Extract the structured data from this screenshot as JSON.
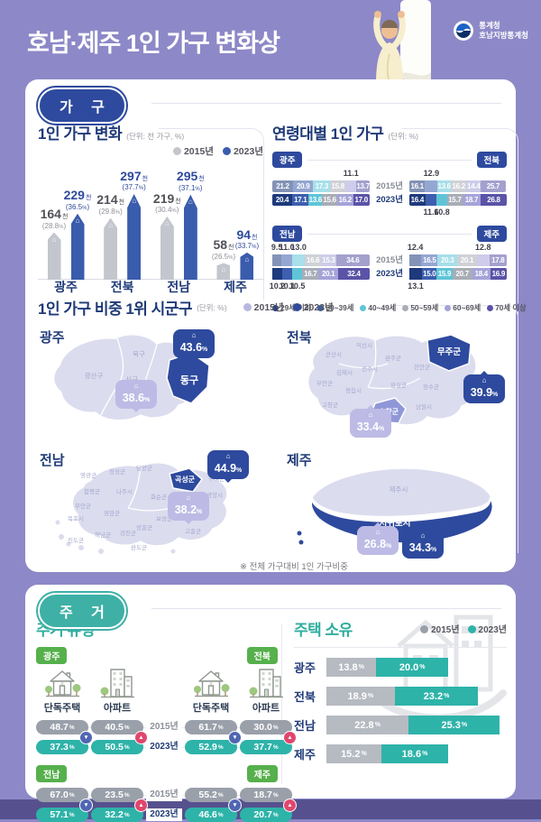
{
  "header": {
    "title": "호남·제주 1인 가구 변화상",
    "logo_top": "통계청",
    "logo_bottom": "호남지방통계청"
  },
  "sections": {
    "household": "가 구",
    "housing": "주 거"
  },
  "units": {
    "percent": "%"
  },
  "chart_data": [
    {
      "type": "bar",
      "title": "1인 가구 변화",
      "unit_label": "(단위: 천 가구, %)",
      "value_suffix": "천",
      "legend": [
        "2015년",
        "2023년"
      ],
      "legend_colors": [
        "#c3c6cd",
        "#3a5cad"
      ],
      "categories": [
        "광주",
        "전북",
        "전남",
        "제주"
      ],
      "series": [
        {
          "name": "2015년",
          "values": [
            "164",
            "214",
            "219",
            "58"
          ],
          "pct": [
            "28.8",
            "29.8",
            "30.4",
            "26.5"
          ]
        },
        {
          "name": "2023년",
          "values": [
            "229",
            "297",
            "295",
            "94"
          ],
          "pct": [
            "36.5",
            "37.7",
            "37.1",
            "33.7"
          ]
        }
      ],
      "ylim": [
        0,
        320
      ]
    },
    {
      "type": "stacked-bar-horizontal",
      "title": "연령대별 1인 가구",
      "unit_label": "(단위: %)",
      "legend": [
        "29세 이하",
        "30~39세",
        "40~49세",
        "50~59세",
        "60~69세",
        "70세 이상"
      ],
      "legend_colors": [
        "#1e3a7c",
        "#3d5fae",
        "#5ec5d8",
        "#a8adb6",
        "#a5a3d8",
        "#5a53a7"
      ],
      "row_labels": [
        "2015년",
        "2023년"
      ],
      "regions": [
        {
          "name": "광주",
          "y2015": [
            {
              "v": "21.2",
              "pos": "in"
            },
            {
              "v": "20.9",
              "pos": "in"
            },
            {
              "v": "17.3",
              "pos": "in"
            },
            {
              "v": "15.8",
              "pos": "in"
            },
            {
              "v": "11.1",
              "pos": "out"
            },
            {
              "v": "13.7",
              "pos": "in"
            }
          ],
          "y2023": [
            {
              "v": "20.4",
              "pos": "in"
            },
            {
              "v": "17.1",
              "pos": "in"
            },
            {
              "v": "13.6",
              "pos": "in"
            },
            {
              "v": "15.6",
              "pos": "in"
            },
            {
              "v": "16.2",
              "pos": "in"
            },
            {
              "v": "17.0",
              "pos": "in"
            }
          ]
        },
        {
          "name": "전북",
          "y2015": [
            {
              "v": "16.1",
              "pos": "in"
            },
            {
              "v": "12.9",
              "pos": "out"
            },
            {
              "v": "13.6",
              "pos": "in"
            },
            {
              "v": "16.2",
              "pos": "in"
            },
            {
              "v": "14.4",
              "pos": "in"
            },
            {
              "v": "25.7",
              "pos": "in"
            }
          ],
          "y2023": [
            {
              "v": "16.4",
              "pos": "in"
            },
            {
              "v": "11.6",
              "pos": "out"
            },
            {
              "v": "10.8",
              "pos": "out"
            },
            {
              "v": "15.7",
              "pos": "in"
            },
            {
              "v": "18.7",
              "pos": "in"
            },
            {
              "v": "26.8",
              "pos": "in"
            }
          ]
        },
        {
          "name": "전남",
          "y2015": [
            {
              "v": "9.5",
              "pos": "out"
            },
            {
              "v": "11.0",
              "pos": "out"
            },
            {
              "v": "13.0",
              "pos": "out"
            },
            {
              "v": "16.6",
              "pos": "in"
            },
            {
              "v": "15.3",
              "pos": "in"
            },
            {
              "v": "34.6",
              "pos": "in"
            }
          ],
          "y2023": [
            {
              "v": "10.2",
              "pos": "out"
            },
            {
              "v": "10.1",
              "pos": "out"
            },
            {
              "v": "10.5",
              "pos": "out"
            },
            {
              "v": "16.7",
              "pos": "in"
            },
            {
              "v": "20.1",
              "pos": "in"
            },
            {
              "v": "32.4",
              "pos": "in"
            }
          ]
        },
        {
          "name": "제주",
          "y2015": [
            {
              "v": "12.4",
              "pos": "out"
            },
            {
              "v": "16.5",
              "pos": "in"
            },
            {
              "v": "20.3",
              "pos": "in"
            },
            {
              "v": "20.1",
              "pos": "in"
            },
            {
              "v": "12.8",
              "pos": "out"
            },
            {
              "v": "17.8",
              "pos": "in"
            }
          ],
          "y2023": [
            {
              "v": "13.1",
              "pos": "out"
            },
            {
              "v": "15.0",
              "pos": "in"
            },
            {
              "v": "15.9",
              "pos": "in"
            },
            {
              "v": "20.7",
              "pos": "in"
            },
            {
              "v": "18.4",
              "pos": "in"
            },
            {
              "v": "16.9",
              "pos": "in"
            }
          ]
        }
      ]
    },
    {
      "type": "map-callouts",
      "title": "1인 가구 비중 1위 시군구",
      "unit_label": "(단위: %)",
      "legend": [
        "2015년",
        "2023년"
      ],
      "legend_colors": [
        "#b9b7e2",
        "#2e4a9e"
      ],
      "note": "※ 전체 가구대비 1인 가구비중",
      "regions": [
        {
          "name": "광주",
          "top_district": "동구",
          "v2023": "43.6",
          "v2015": "38.6",
          "districts": [
            "광산구",
            "북구",
            "서구",
            "남구"
          ]
        },
        {
          "name": "전북",
          "top_district": "무주군",
          "v2023": "39.9",
          "v2015": "33.4",
          "district_2015": "순창군",
          "districts": [
            "군산시",
            "익산시",
            "완주군",
            "전주시",
            "진안군",
            "김제시",
            "부안군",
            "정읍시",
            "임실군",
            "장수군",
            "고창군",
            "남원시"
          ]
        },
        {
          "name": "전남",
          "top_district": "곡성군",
          "v2023": "44.9",
          "v2015": "38.2",
          "districts": [
            "영광군",
            "장성군",
            "담양군",
            "구례군",
            "함평군",
            "나주시",
            "화순군",
            "순천시",
            "광양시",
            "무안군",
            "목포시",
            "영암군",
            "보성군",
            "고흥군",
            "장흥군",
            "강진군",
            "해남군",
            "진도군",
            "완도군"
          ]
        },
        {
          "name": "제주",
          "top_district": "서귀포시",
          "v2023": "34.3",
          "v2015": "26.8",
          "districts": [
            "제주시"
          ]
        }
      ]
    },
    {
      "type": "pictogram-table",
      "title": "주거 유형",
      "row_labels": [
        "2015년",
        "2023년"
      ],
      "groups": [
        {
          "region": "광주",
          "items": [
            {
              "label": "단독주택",
              "icon": "house",
              "v2015": "48.7",
              "v2023": "37.3",
              "trend": "down"
            },
            {
              "label": "아파트",
              "icon": "apartment",
              "v2015": "40.5",
              "v2023": "50.5",
              "trend": "up"
            }
          ]
        },
        {
          "region": "전북",
          "items": [
            {
              "label": "단독주택",
              "icon": "house",
              "v2015": "61.7",
              "v2023": "52.9",
              "trend": "down"
            },
            {
              "label": "아파트",
              "icon": "apartment",
              "v2015": "30.0",
              "v2023": "37.7",
              "trend": "up"
            }
          ]
        },
        {
          "region": "전남",
          "items": [
            {
              "v2015": "67.0",
              "v2023": "57.1",
              "trend": "down"
            },
            {
              "v2015": "23.5",
              "v2023": "32.2",
              "trend": "up"
            }
          ]
        },
        {
          "region": "제주",
          "items": [
            {
              "v2015": "55.2",
              "v2023": "46.6",
              "trend": "down"
            },
            {
              "v2015": "18.7",
              "v2023": "20.7",
              "trend": "up"
            }
          ]
        }
      ]
    },
    {
      "type": "grouped-bar-horizontal",
      "title": "주택 소유",
      "legend": [
        "2015년",
        "2023년"
      ],
      "legend_colors": [
        "#9aa0aa",
        "#2eb3a9"
      ],
      "categories": [
        "광주",
        "전북",
        "전남",
        "제주"
      ],
      "series": [
        {
          "name": "2015년",
          "values": [
            "13.8",
            "18.9",
            "22.8",
            "15.2"
          ]
        },
        {
          "name": "2023년",
          "values": [
            "20.0",
            "23.2",
            "25.3",
            "18.6"
          ]
        }
      ]
    }
  ]
}
